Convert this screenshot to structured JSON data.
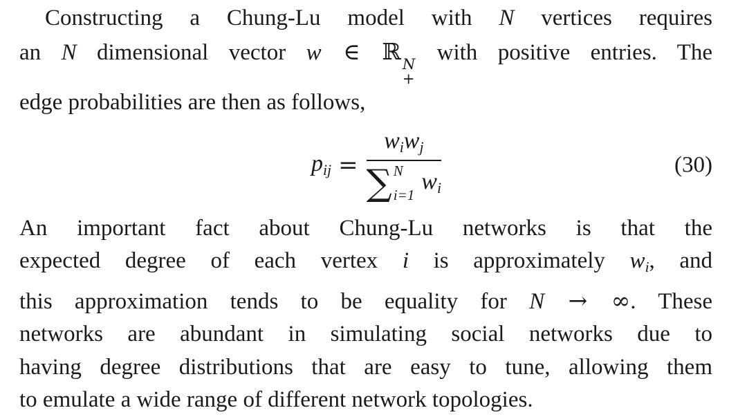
{
  "document": {
    "background": "#ffffff",
    "text_color": "#1a1a1a"
  },
  "paragraph1": {
    "lines": [
      {
        "indent": true,
        "justify": true,
        "segments": [
          {
            "text": "Constructing a Chung-Lu model with ",
            "style": "rm"
          },
          {
            "text": "N",
            "style": "it"
          },
          {
            "text": " vertices requires",
            "style": "rm"
          }
        ]
      },
      {
        "justify": true,
        "segments": [
          {
            "text": "an ",
            "style": "rm"
          },
          {
            "text": "N",
            "style": "it"
          },
          {
            "text": " dimensional vector ",
            "style": "rm"
          },
          {
            "text": "w",
            "style": "it"
          },
          {
            "text": " ∈ ",
            "style": "sym"
          },
          {
            "text": "ℝ",
            "style": "bb",
            "stack": true,
            "sup": "N",
            "sub": "+"
          },
          {
            "text": " with positive entries. The",
            "style": "rm"
          }
        ]
      },
      {
        "justify": false,
        "segments": [
          {
            "text": "edge probabilities are then as follows,",
            "style": "rm"
          }
        ]
      }
    ]
  },
  "equation": {
    "p": "p",
    "p_sub": "ij",
    "eq": "=",
    "num_w1": "w",
    "num_w1_sub": "i",
    "num_w2": "w",
    "num_w2_sub": "j",
    "sum": "∑",
    "sum_sup": "N",
    "sum_sub": "i=1",
    "den_w": "w",
    "den_w_sub": "i",
    "number": "(30)"
  },
  "paragraph2": {
    "lines": [
      {
        "justify": true,
        "segments": [
          {
            "text": "An important fact about Chung-Lu networks is that the",
            "style": "rm"
          }
        ]
      },
      {
        "justify": true,
        "segments": [
          {
            "text": "expected degree of each vertex ",
            "style": "rm"
          },
          {
            "text": "i",
            "style": "it"
          },
          {
            "text": " is approximately ",
            "style": "rm"
          },
          {
            "text": "w",
            "style": "it",
            "sub": "i"
          },
          {
            "text": ", and",
            "style": "rm"
          }
        ]
      },
      {
        "justify": true,
        "segments": [
          {
            "text": "this approximation tends to be equality for ",
            "style": "rm"
          },
          {
            "text": "N",
            "style": "it"
          },
          {
            "text": " → ∞",
            "style": "sym"
          },
          {
            "text": ". These",
            "style": "rm"
          }
        ]
      },
      {
        "justify": true,
        "segments": [
          {
            "text": "networks are abundant in simulating social networks due to",
            "style": "rm"
          }
        ]
      },
      {
        "justify": true,
        "segments": [
          {
            "text": "having degree distributions that are easy to tune, allowing them",
            "style": "rm"
          }
        ]
      },
      {
        "justify": false,
        "segments": [
          {
            "text": "to emulate a wide range of different network topologies.",
            "style": "rm"
          }
        ]
      }
    ]
  }
}
